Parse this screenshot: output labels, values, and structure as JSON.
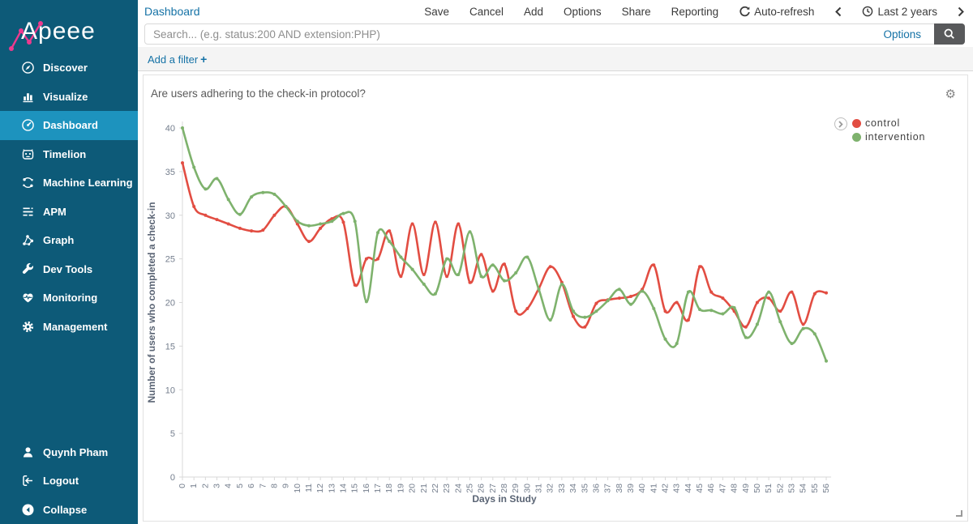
{
  "app": {
    "logo_text": "Apeee"
  },
  "sidebar": {
    "items": [
      {
        "icon": "discover",
        "label": "Discover",
        "active": false
      },
      {
        "icon": "visualize",
        "label": "Visualize",
        "active": false
      },
      {
        "icon": "dashboard",
        "label": "Dashboard",
        "active": true
      },
      {
        "icon": "timelion",
        "label": "Timelion",
        "active": false
      },
      {
        "icon": "machine-learning",
        "label": "Machine Learning",
        "active": false
      },
      {
        "icon": "apm",
        "label": "APM",
        "active": false
      },
      {
        "icon": "graph",
        "label": "Graph",
        "active": false
      },
      {
        "icon": "dev-tools",
        "label": "Dev Tools",
        "active": false
      },
      {
        "icon": "monitoring",
        "label": "Monitoring",
        "active": false
      },
      {
        "icon": "management",
        "label": "Management",
        "active": false
      }
    ],
    "footer": [
      {
        "icon": "user",
        "label": "Quynh Pham",
        "active": false
      },
      {
        "icon": "logout",
        "label": "Logout",
        "active": false
      },
      {
        "icon": "collapse",
        "label": "Collapse",
        "active": false
      }
    ]
  },
  "topbar": {
    "breadcrumb": "Dashboard",
    "menu": [
      "Save",
      "Cancel",
      "Add",
      "Options",
      "Share",
      "Reporting"
    ],
    "auto_refresh": "Auto-refresh",
    "time_range": "Last 2 years"
  },
  "search": {
    "placeholder": "Search... (e.g. status:200 AND extension:PHP)",
    "options_label": "Options"
  },
  "filters": {
    "add_filter": "Add a filter",
    "plus": "+"
  },
  "panel": {
    "title": "Are users adhering to the check-in protocol?",
    "gear": "⚙"
  },
  "colors": {
    "sidebar_bg": "#0d5a78",
    "sidebar_active": "#1d93be",
    "link_blue": "#1572a6",
    "control_red": "#e24d42",
    "intervention_green": "#7eb26d",
    "axis_text": "#747e8d",
    "axis_title": "#5a6474",
    "axis_line": "#d9d9d9"
  },
  "chart_data": {
    "type": "line",
    "title": "Are users adhering to the check-in protocol?",
    "xlabel": "Days in Study",
    "ylabel": "Number of users who completed a check-in",
    "ylim": [
      0,
      40
    ],
    "yticks": [
      0,
      5,
      10,
      15,
      20,
      25,
      30,
      35,
      40
    ],
    "grid": false,
    "legend_position": "right",
    "interpolation": "cardinal",
    "x": [
      0,
      1,
      2,
      3,
      4,
      5,
      6,
      7,
      8,
      9,
      10,
      11,
      12,
      13,
      14,
      15,
      16,
      17,
      18,
      19,
      20,
      21,
      22,
      23,
      24,
      25,
      26,
      27,
      28,
      29,
      30,
      31,
      32,
      33,
      34,
      35,
      36,
      37,
      38,
      39,
      40,
      41,
      42,
      43,
      44,
      45,
      46,
      47,
      48,
      49,
      50,
      51,
      52,
      53,
      54,
      55,
      56
    ],
    "series": [
      {
        "name": "control",
        "color": "#e24d42",
        "values": [
          36,
          31,
          30,
          29.5,
          29,
          28.5,
          28.2,
          28.3,
          30,
          31,
          29,
          27,
          28.5,
          29.6,
          29.2,
          22,
          25,
          25,
          28.2,
          23,
          29,
          23.2,
          29.2,
          23,
          29,
          22.3,
          25.5,
          21.3,
          24.4,
          19,
          19.3,
          21.6,
          24.1,
          22.3,
          18.4,
          17.2,
          19.9,
          20.3,
          20.5,
          20.7,
          21.5,
          24.3,
          19,
          20,
          18,
          24.1,
          21.2,
          20.5,
          19,
          17.2,
          20,
          20.5,
          19,
          21.2,
          17.5,
          21,
          21.1
        ]
      },
      {
        "name": "intervention",
        "color": "#7eb26d",
        "values": [
          40,
          35.5,
          33,
          34.2,
          31.8,
          30.1,
          32.1,
          32.6,
          32.4,
          31,
          29.3,
          28.8,
          29,
          29.3,
          30.2,
          29.3,
          20.1,
          28,
          27,
          25.2,
          23.8,
          22.1,
          21,
          25,
          23.2,
          28.1,
          23,
          24.3,
          22.5,
          23.4,
          25.2,
          21.5,
          18,
          22.1,
          19,
          18.3,
          19,
          20.2,
          21.5,
          19.8,
          21.3,
          19.3,
          15.8,
          15.3,
          21.2,
          19.2,
          19.1,
          18.7,
          19.4,
          16,
          17.5,
          21.2,
          17.8,
          15.3,
          17,
          16.4,
          13.3
        ]
      }
    ]
  }
}
